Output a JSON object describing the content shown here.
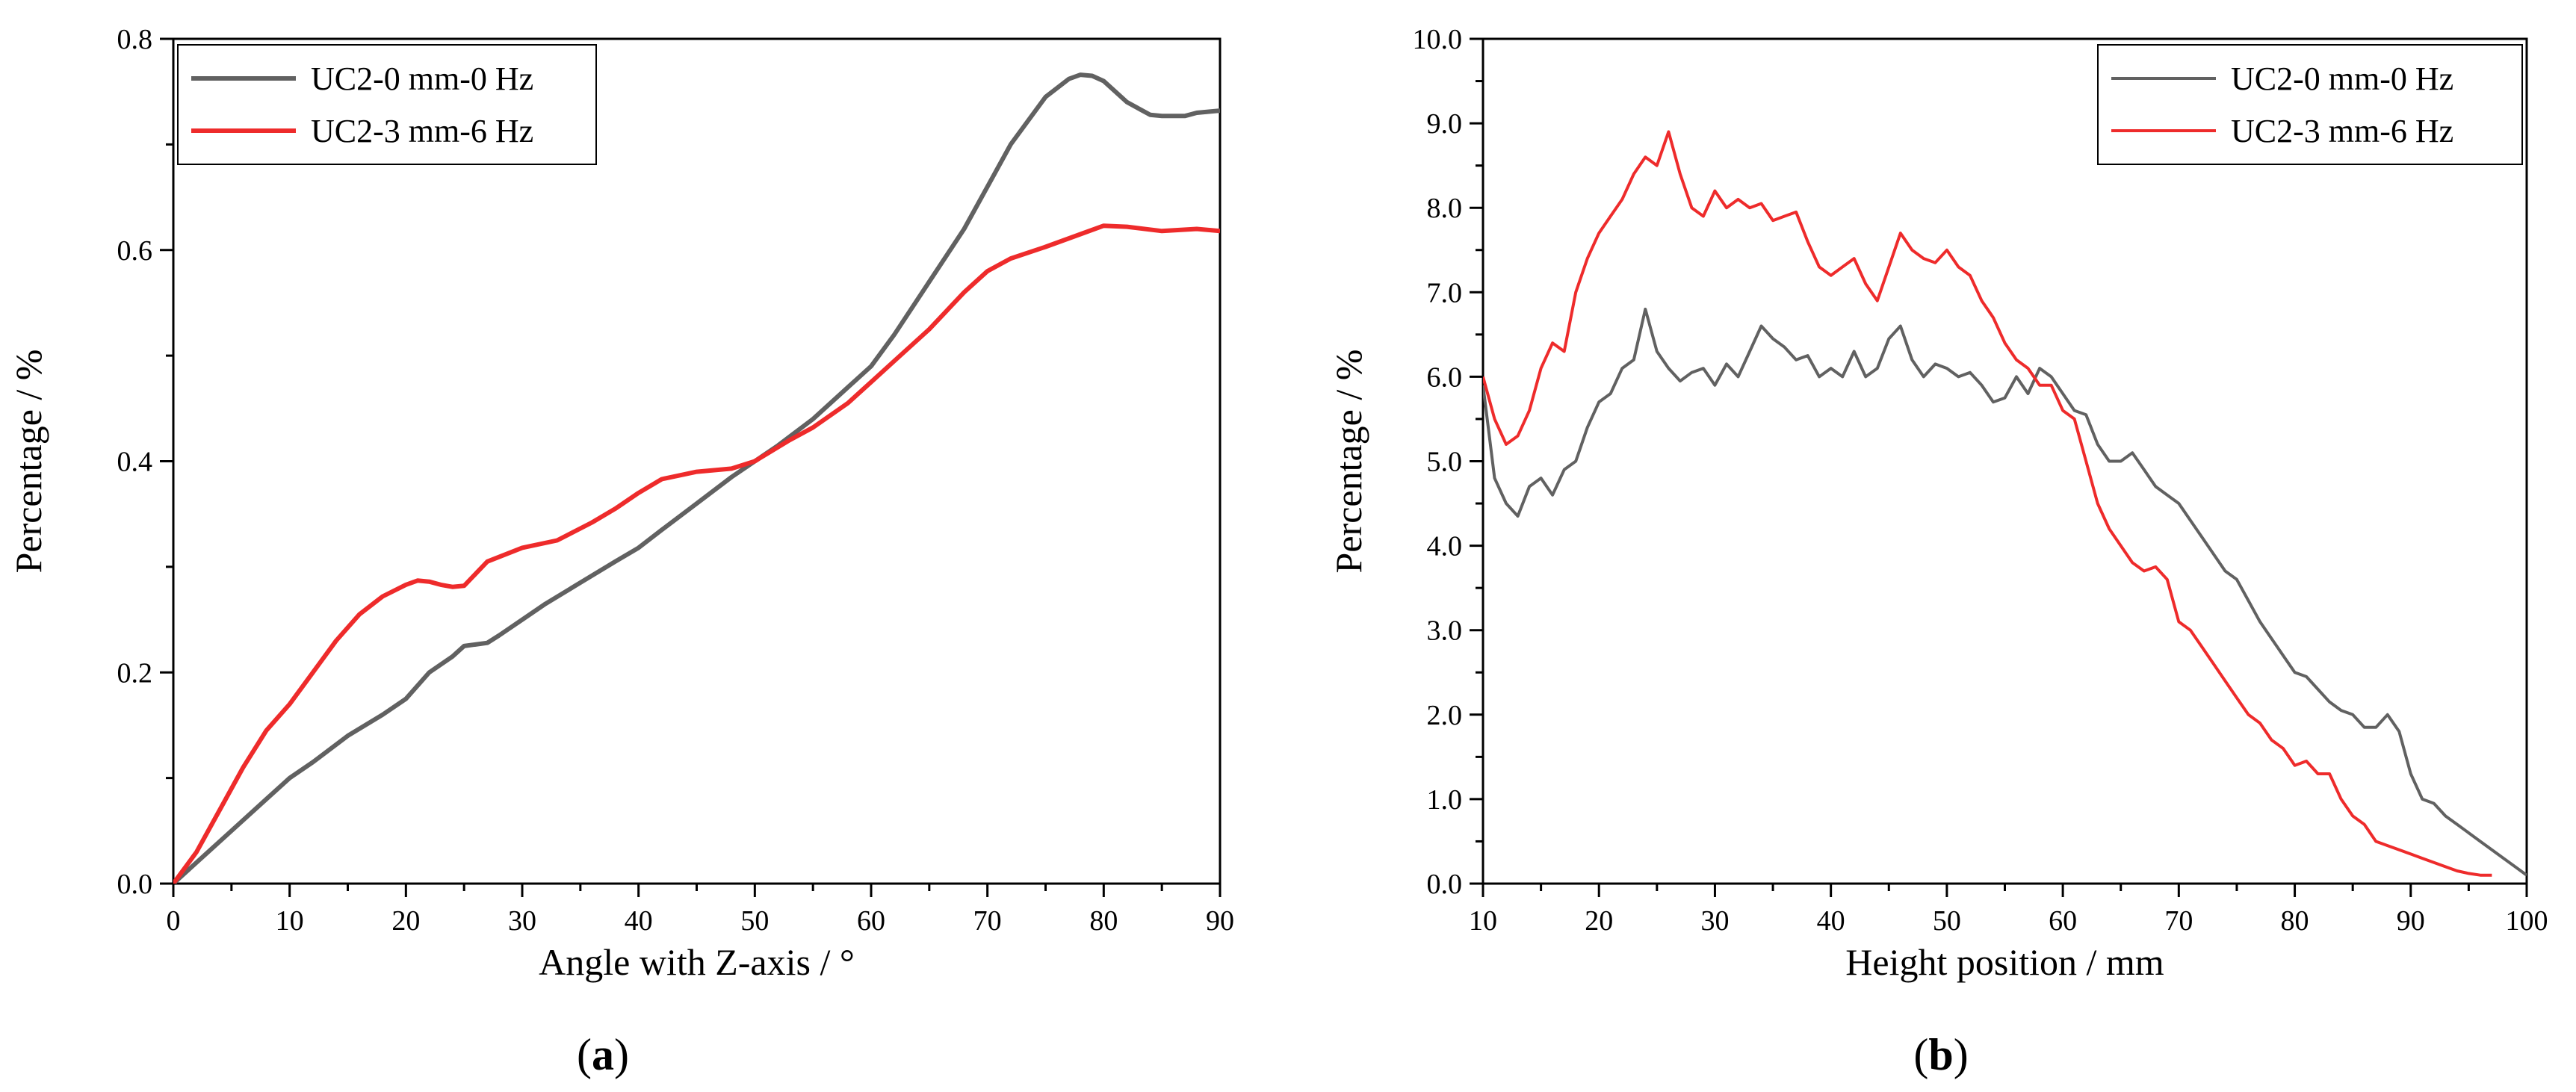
{
  "chart_data": [
    {
      "type": "line",
      "panel_label": "a",
      "xlabel": "Angle with Z-axis / °",
      "ylabel": "Percentage / %",
      "xlim": [
        0,
        90
      ],
      "ylim": [
        0,
        0.8
      ],
      "xticks": [
        0,
        10,
        20,
        30,
        40,
        50,
        60,
        70,
        80,
        90
      ],
      "xtick_labels": [
        "0",
        "10",
        "20",
        "30",
        "40",
        "50",
        "60",
        "70",
        "80",
        "90"
      ],
      "yticks": [
        0,
        0.2,
        0.4,
        0.6,
        0.8
      ],
      "ytick_labels": [
        "0.0",
        "0.2",
        "0.4",
        "0.6",
        "0.8"
      ],
      "legend_position": "top-left",
      "grid": false,
      "series": [
        {
          "name": "UC2-0 mm-0 Hz",
          "color": "#616161",
          "x": [
            0,
            2,
            5,
            8,
            10,
            12,
            15,
            18,
            20,
            22,
            24,
            25,
            27,
            28,
            30,
            32,
            35,
            38,
            40,
            42,
            45,
            48,
            50,
            52,
            55,
            58,
            60,
            62,
            65,
            68,
            70,
            72,
            75,
            77,
            78,
            79,
            80,
            82,
            84,
            85,
            87,
            88,
            90
          ],
          "y": [
            0,
            0.02,
            0.05,
            0.08,
            0.1,
            0.115,
            0.14,
            0.16,
            0.175,
            0.2,
            0.215,
            0.225,
            0.228,
            0.235,
            0.25,
            0.265,
            0.285,
            0.305,
            0.318,
            0.335,
            0.36,
            0.385,
            0.4,
            0.415,
            0.44,
            0.47,
            0.49,
            0.52,
            0.57,
            0.62,
            0.66,
            0.7,
            0.745,
            0.762,
            0.766,
            0.765,
            0.76,
            0.74,
            0.728,
            0.727,
            0.727,
            0.73,
            0.732
          ]
        },
        {
          "name": "UC2-3 mm-6 Hz",
          "color": "#ee2b2b",
          "x": [
            0,
            2,
            4,
            6,
            8,
            10,
            12,
            14,
            16,
            18,
            20,
            21,
            22,
            23,
            24,
            25,
            27,
            30,
            33,
            36,
            38,
            40,
            42,
            45,
            48,
            50,
            53,
            55,
            58,
            60,
            62,
            65,
            68,
            70,
            72,
            75,
            78,
            80,
            82,
            85,
            88,
            90
          ],
          "y": [
            0,
            0.03,
            0.07,
            0.11,
            0.145,
            0.17,
            0.2,
            0.23,
            0.255,
            0.272,
            0.283,
            0.287,
            0.286,
            0.283,
            0.281,
            0.282,
            0.305,
            0.318,
            0.325,
            0.342,
            0.355,
            0.37,
            0.383,
            0.39,
            0.393,
            0.4,
            0.42,
            0.432,
            0.455,
            0.475,
            0.495,
            0.525,
            0.56,
            0.58,
            0.592,
            0.603,
            0.615,
            0.623,
            0.622,
            0.618,
            0.62,
            0.618
          ]
        }
      ]
    },
    {
      "type": "line",
      "panel_label": "b",
      "xlabel": "Height position / mm",
      "ylabel": "Percentage / %",
      "xlim": [
        10,
        100
      ],
      "ylim": [
        0,
        10
      ],
      "xticks": [
        10,
        20,
        30,
        40,
        50,
        60,
        70,
        80,
        90,
        100
      ],
      "xtick_labels": [
        "10",
        "20",
        "30",
        "40",
        "50",
        "60",
        "70",
        "80",
        "90",
        "100"
      ],
      "yticks": [
        0,
        1,
        2,
        3,
        4,
        5,
        6,
        7,
        8,
        9,
        10
      ],
      "ytick_labels": [
        "0.0",
        "1.0",
        "2.0",
        "3.0",
        "4.0",
        "5.0",
        "6.0",
        "7.0",
        "8.0",
        "9.0",
        "10.0"
      ],
      "legend_position": "top-right",
      "grid": false,
      "series": [
        {
          "name": "UC2-0 mm-0 Hz",
          "color": "#616161",
          "x": [
            10,
            11,
            12,
            13,
            14,
            15,
            16,
            17,
            18,
            19,
            20,
            21,
            22,
            23,
            24,
            25,
            26,
            27,
            28,
            29,
            30,
            31,
            32,
            33,
            34,
            35,
            36,
            37,
            38,
            39,
            40,
            41,
            42,
            43,
            44,
            45,
            46,
            47,
            48,
            49,
            50,
            51,
            52,
            53,
            54,
            55,
            56,
            57,
            58,
            59,
            60,
            61,
            62,
            63,
            64,
            65,
            66,
            67,
            68,
            69,
            70,
            71,
            72,
            73,
            74,
            75,
            76,
            77,
            78,
            79,
            80,
            81,
            82,
            83,
            84,
            85,
            86,
            87,
            88,
            89,
            90,
            91,
            92,
            93,
            94,
            95,
            96,
            97,
            98,
            99,
            100
          ],
          "y": [
            5.9,
            4.8,
            4.5,
            4.35,
            4.7,
            4.8,
            4.6,
            4.9,
            5.0,
            5.4,
            5.7,
            5.8,
            6.1,
            6.2,
            6.8,
            6.3,
            6.1,
            5.95,
            6.05,
            6.1,
            5.9,
            6.15,
            6.0,
            6.3,
            6.6,
            6.45,
            6.35,
            6.2,
            6.25,
            6.0,
            6.1,
            6.0,
            6.3,
            6.0,
            6.1,
            6.45,
            6.6,
            6.2,
            6.0,
            6.15,
            6.1,
            6.0,
            6.05,
            5.9,
            5.7,
            5.75,
            6.0,
            5.8,
            6.1,
            6.0,
            5.8,
            5.6,
            5.55,
            5.2,
            5.0,
            5.0,
            5.1,
            4.9,
            4.7,
            4.6,
            4.5,
            4.3,
            4.1,
            3.9,
            3.7,
            3.6,
            3.35,
            3.1,
            2.9,
            2.7,
            2.5,
            2.45,
            2.3,
            2.15,
            2.05,
            2.0,
            1.85,
            1.85,
            2.0,
            1.8,
            1.3,
            1.0,
            0.95,
            0.8,
            0.7,
            0.6,
            0.5,
            0.4,
            0.3,
            0.2,
            0.1
          ]
        },
        {
          "name": "UC2-3 mm-6 Hz",
          "color": "#ee2b2b",
          "x": [
            10,
            11,
            12,
            13,
            14,
            15,
            16,
            17,
            18,
            19,
            20,
            21,
            22,
            23,
            24,
            25,
            26,
            27,
            28,
            29,
            30,
            31,
            32,
            33,
            34,
            35,
            36,
            37,
            38,
            39,
            40,
            41,
            42,
            43,
            44,
            45,
            46,
            47,
            48,
            49,
            50,
            51,
            52,
            53,
            54,
            55,
            56,
            57,
            58,
            59,
            60,
            61,
            62,
            63,
            64,
            65,
            66,
            67,
            68,
            69,
            70,
            71,
            72,
            73,
            74,
            75,
            76,
            77,
            78,
            79,
            80,
            81,
            82,
            83,
            84,
            85,
            86,
            87,
            88,
            89,
            90,
            91,
            92,
            93,
            94,
            95,
            96,
            97
          ],
          "y": [
            6.0,
            5.5,
            5.2,
            5.3,
            5.6,
            6.1,
            6.4,
            6.3,
            7.0,
            7.4,
            7.7,
            7.9,
            8.1,
            8.4,
            8.6,
            8.5,
            8.9,
            8.4,
            8.0,
            7.9,
            8.2,
            8.0,
            8.1,
            8.0,
            8.05,
            7.85,
            7.9,
            7.95,
            7.6,
            7.3,
            7.2,
            7.3,
            7.4,
            7.1,
            6.9,
            7.3,
            7.7,
            7.5,
            7.4,
            7.35,
            7.5,
            7.3,
            7.2,
            6.9,
            6.7,
            6.4,
            6.2,
            6.1,
            5.9,
            5.9,
            5.6,
            5.5,
            5.0,
            4.5,
            4.2,
            4.0,
            3.8,
            3.7,
            3.75,
            3.6,
            3.1,
            3.0,
            2.8,
            2.6,
            2.4,
            2.2,
            2.0,
            1.9,
            1.7,
            1.6,
            1.4,
            1.45,
            1.3,
            1.3,
            1.0,
            0.8,
            0.7,
            0.5,
            0.45,
            0.4,
            0.35,
            0.3,
            0.25,
            0.2,
            0.15,
            0.12,
            0.1,
            0.1
          ]
        }
      ]
    }
  ]
}
